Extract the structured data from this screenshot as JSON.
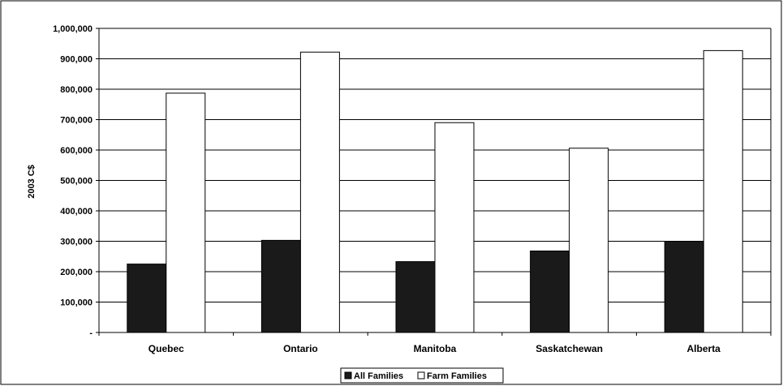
{
  "chart_data": {
    "type": "bar",
    "title": "",
    "xlabel": "",
    "ylabel": "2003 C$",
    "categories": [
      "Quebec",
      "Ontario",
      "Manitoba",
      "Saskatchewan",
      "Alberta"
    ],
    "series": [
      {
        "name": "All Families",
        "values": [
          225000,
          303000,
          233000,
          268000,
          300000
        ],
        "color": "#1a1a1a"
      },
      {
        "name": "Farm Families",
        "values": [
          787000,
          922000,
          690000,
          606000,
          927000
        ],
        "color": "#ffffff"
      }
    ],
    "ylim": [
      0,
      1000000
    ],
    "yticks": [
      0,
      100000,
      200000,
      300000,
      400000,
      500000,
      600000,
      700000,
      800000,
      900000,
      1000000
    ],
    "ytick_labels": [
      "-",
      "100,000",
      "200,000",
      "300,000",
      "400,000",
      "500,000",
      "600,000",
      "700,000",
      "800,000",
      "900,000",
      "1,000,000"
    ],
    "grid": true,
    "legend_position": "bottom"
  }
}
